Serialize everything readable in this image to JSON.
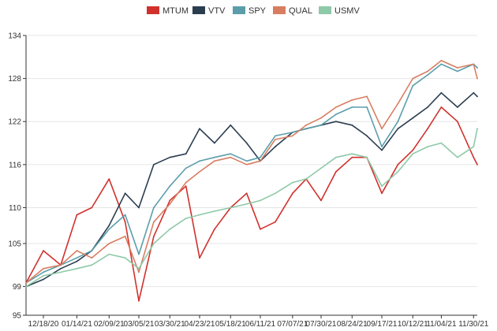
{
  "chart_data": {
    "type": "line",
    "title": "",
    "xlabel": "",
    "ylabel": "",
    "legend_position": "top-center",
    "grid": "horizontal",
    "ylim": [
      95,
      134
    ],
    "y_ticks": [
      95,
      99,
      105,
      110,
      116,
      122,
      128,
      134
    ],
    "x_ticks": [
      "12/18/20",
      "01/14/21",
      "02/09/21",
      "03/05/21",
      "03/30/21",
      "04/23/21",
      "05/18/21",
      "06/11/21",
      "07/07/21",
      "07/30/21",
      "08/24/21",
      "09/17/21",
      "10/12/21",
      "11/04/21",
      "11/30/21"
    ],
    "x": [
      "12/04/20",
      "12/18/20",
      "01/01/21",
      "01/14/21",
      "01/26/21",
      "02/09/21",
      "02/22/21",
      "03/05/21",
      "03/17/21",
      "03/30/21",
      "04/12/21",
      "04/23/21",
      "05/05/21",
      "05/18/21",
      "05/31/21",
      "06/11/21",
      "06/23/21",
      "07/07/21",
      "07/18/21",
      "07/30/21",
      "08/11/21",
      "08/24/21",
      "09/05/21",
      "09/17/21",
      "09/30/21",
      "10/12/21",
      "10/24/21",
      "11/04/21",
      "11/17/21",
      "11/30/21",
      "12/03/21"
    ],
    "series": [
      {
        "name": "MTUM",
        "color": "#d0312d",
        "values": [
          99.5,
          104.0,
          102.0,
          109.0,
          110.0,
          114.0,
          108.0,
          97.0,
          106.0,
          111.0,
          113.0,
          103.0,
          107.0,
          110.0,
          112.0,
          107.0,
          108.0,
          112.0,
          114.0,
          111.0,
          115.0,
          117.0,
          117.0,
          112.0,
          116.0,
          118.0,
          121.0,
          124.0,
          122.0,
          117.0,
          116.0
        ]
      },
      {
        "name": "VTV",
        "color": "#2b3e50",
        "values": [
          99.0,
          100.0,
          101.5,
          102.5,
          104.0,
          107.5,
          112.0,
          110.0,
          116.0,
          117.0,
          117.5,
          121.0,
          119.0,
          121.5,
          119.0,
          116.5,
          118.5,
          120.5,
          121.0,
          121.5,
          122.0,
          121.5,
          120.0,
          118.0,
          121.0,
          122.5,
          124.0,
          126.0,
          124.0,
          126.0,
          125.5
        ]
      },
      {
        "name": "SPY",
        "color": "#5b9eaa",
        "values": [
          99.5,
          101.0,
          102.0,
          103.0,
          104.0,
          107.0,
          109.0,
          103.5,
          110.0,
          113.0,
          115.5,
          116.5,
          117.0,
          117.5,
          116.5,
          117.0,
          120.0,
          120.5,
          121.0,
          121.5,
          123.0,
          124.0,
          124.0,
          118.5,
          122.0,
          127.0,
          128.5,
          130.0,
          129.0,
          130.0,
          129.5
        ]
      },
      {
        "name": "QUAL",
        "color": "#d97d61",
        "values": [
          99.5,
          101.5,
          102.0,
          104.0,
          103.0,
          105.0,
          106.0,
          101.0,
          108.0,
          110.5,
          113.5,
          115.0,
          116.5,
          117.0,
          116.0,
          116.5,
          119.5,
          120.0,
          121.5,
          122.5,
          124.0,
          125.0,
          125.5,
          121.0,
          124.5,
          128.0,
          129.0,
          130.5,
          129.5,
          130.0,
          128.0
        ]
      },
      {
        "name": "USMV",
        "color": "#8ec9a8",
        "values": [
          99.0,
          100.5,
          101.0,
          101.5,
          102.0,
          103.5,
          103.0,
          101.5,
          105.0,
          107.0,
          108.5,
          109.0,
          109.5,
          110.0,
          110.5,
          111.0,
          112.0,
          113.5,
          114.0,
          115.5,
          117.0,
          117.5,
          117.0,
          113.0,
          115.0,
          117.5,
          118.5,
          119.0,
          117.0,
          118.5,
          121.0
        ]
      }
    ]
  }
}
